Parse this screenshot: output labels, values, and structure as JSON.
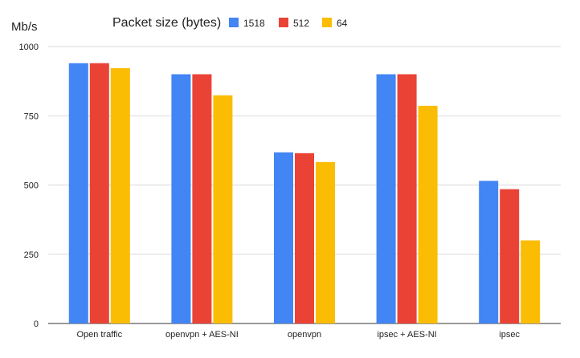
{
  "chart_data": {
    "type": "bar",
    "ylabel": "Mb/s",
    "xlabel": "",
    "ylim": [
      0,
      1000
    ],
    "yticks": [
      0,
      250,
      500,
      750,
      1000
    ],
    "grid": true,
    "legend": {
      "title": "Packet size (bytes)",
      "placement": "top"
    },
    "categories": [
      "Open traffic",
      "openvpn + AES-NI",
      "openvpn",
      "ipsec + AES-NI",
      "ipsec"
    ],
    "series": [
      {
        "name": "1518",
        "color": "#4285F4",
        "values": [
          940,
          900,
          618,
          900,
          515
        ]
      },
      {
        "name": "512",
        "color": "#EA4335",
        "values": [
          940,
          900,
          615,
          900,
          485
        ]
      },
      {
        "name": "64",
        "color": "#FBBC04",
        "values": [
          922,
          824,
          583,
          786,
          300
        ]
      }
    ]
  }
}
